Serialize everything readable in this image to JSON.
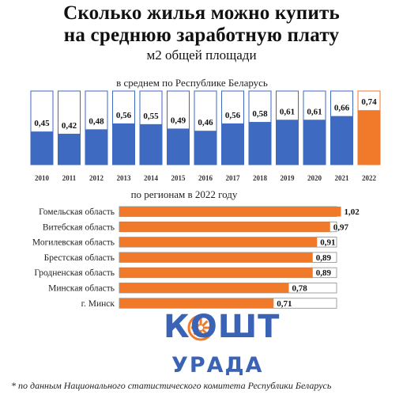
{
  "title_line1": "Сколько жилья можно купить",
  "title_line2": "на среднюю заработную плату",
  "subtitle": "м2 общей площади",
  "logo": {
    "top": "КОШТ",
    "bottom": "УРАДА",
    "color": "#3a63b5",
    "accent": "#f07a2a"
  },
  "footnote": "* по данным Национального статистического комитета Республики Беларусь",
  "chart_data": [
    {
      "type": "bar",
      "title": "в среднем по Республике Беларусь",
      "categories": [
        "2010",
        "2011",
        "2012",
        "2013",
        "2014",
        "2015",
        "2016",
        "2017",
        "2018",
        "2019",
        "2020",
        "2021",
        "2022"
      ],
      "values": [
        0.45,
        0.42,
        0.48,
        0.56,
        0.55,
        0.49,
        0.46,
        0.56,
        0.58,
        0.61,
        0.61,
        0.66,
        0.74
      ],
      "value_labels": [
        "0,45",
        "0,42",
        "0,48",
        "0,56",
        "0,55",
        "0,49",
        "0,46",
        "0,56",
        "0,58",
        "0,61",
        "0,61",
        "0,66",
        "0,74"
      ],
      "colors": {
        "default": "#3e6ac1",
        "highlight": "#f07a2a",
        "highlight_index": 12,
        "border": "#3e6ac1"
      },
      "ylim": [
        0,
        1
      ]
    },
    {
      "type": "bar",
      "orientation": "horizontal",
      "title": "по регионам в 2022 году",
      "categories": [
        "Гомельская область",
        "Витебская область",
        "Могилевская область",
        "Брестская область",
        "Гродненская область",
        "Минская область",
        "г. Минск"
      ],
      "values": [
        1.02,
        0.97,
        0.91,
        0.89,
        0.89,
        0.78,
        0.71
      ],
      "value_labels": [
        "1,02",
        "0,97",
        "0,91",
        "0,89",
        "0,89",
        "0,78",
        "0,71"
      ],
      "colors": {
        "fill": "#f07a2a",
        "border": "#8a8a8a"
      },
      "xlim": [
        0,
        1
      ]
    }
  ]
}
